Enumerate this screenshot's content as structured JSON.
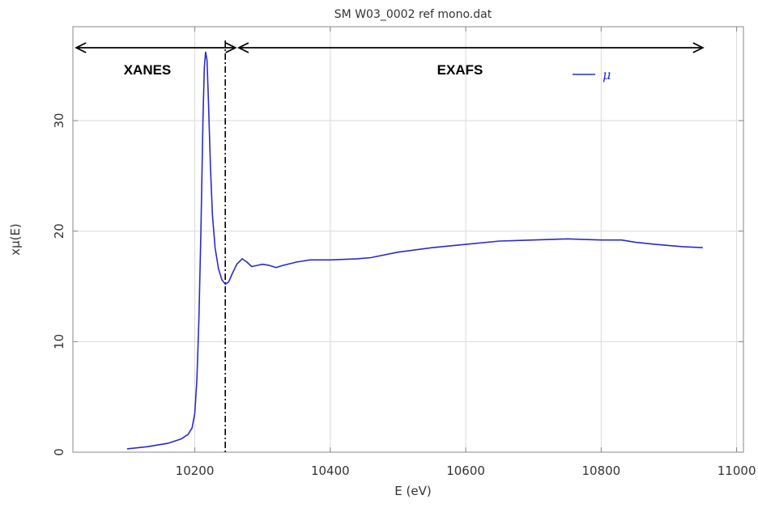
{
  "chart_data": {
    "type": "line",
    "title": "SM W03_0002 ref mono.dat",
    "xlabel": "E (eV)",
    "ylabel": "xμ(E)",
    "xlim": [
      10020,
      11010
    ],
    "ylim": [
      0,
      38.5
    ],
    "x_ticks": [
      10200,
      10400,
      10600,
      10800,
      11000
    ],
    "y_ticks": [
      0,
      10,
      20,
      30
    ],
    "grid": true,
    "line_color": "#2a2acc",
    "legend": {
      "position": "top-right",
      "entries": [
        "μ"
      ]
    },
    "annotations": {
      "xanes_label": "XANES",
      "exafs_label": "EXAFS",
      "xanes_range": [
        10025,
        10260
      ],
      "exafs_range": [
        10265,
        10950
      ],
      "divider_x": 10245
    },
    "series": [
      {
        "name": "μ",
        "x": [
          10100,
          10130,
          10160,
          10180,
          10190,
          10196,
          10200,
          10203,
          10206,
          10209,
          10212,
          10214,
          10216,
          10218,
          10220,
          10223,
          10226,
          10230,
          10235,
          10240,
          10245,
          10250,
          10255,
          10262,
          10270,
          10277,
          10284,
          10292,
          10300,
          10310,
          10320,
          10330,
          10350,
          10370,
          10400,
          10440,
          10460,
          10500,
          10550,
          10600,
          10650,
          10700,
          10750,
          10800,
          10830,
          10850,
          10880,
          10920,
          10950
        ],
        "y": [
          0.3,
          0.5,
          0.8,
          1.2,
          1.6,
          2.2,
          3.5,
          6.5,
          12.0,
          20.0,
          30.0,
          34.8,
          36.2,
          35.5,
          32.0,
          26.0,
          21.5,
          18.5,
          16.6,
          15.6,
          15.2,
          15.4,
          16.1,
          17.0,
          17.5,
          17.2,
          16.8,
          16.9,
          17.0,
          16.9,
          16.7,
          16.9,
          17.2,
          17.4,
          17.4,
          17.5,
          17.6,
          18.1,
          18.5,
          18.8,
          19.1,
          19.2,
          19.3,
          19.2,
          19.2,
          19.0,
          18.8,
          18.6,
          18.5
        ]
      }
    ]
  }
}
